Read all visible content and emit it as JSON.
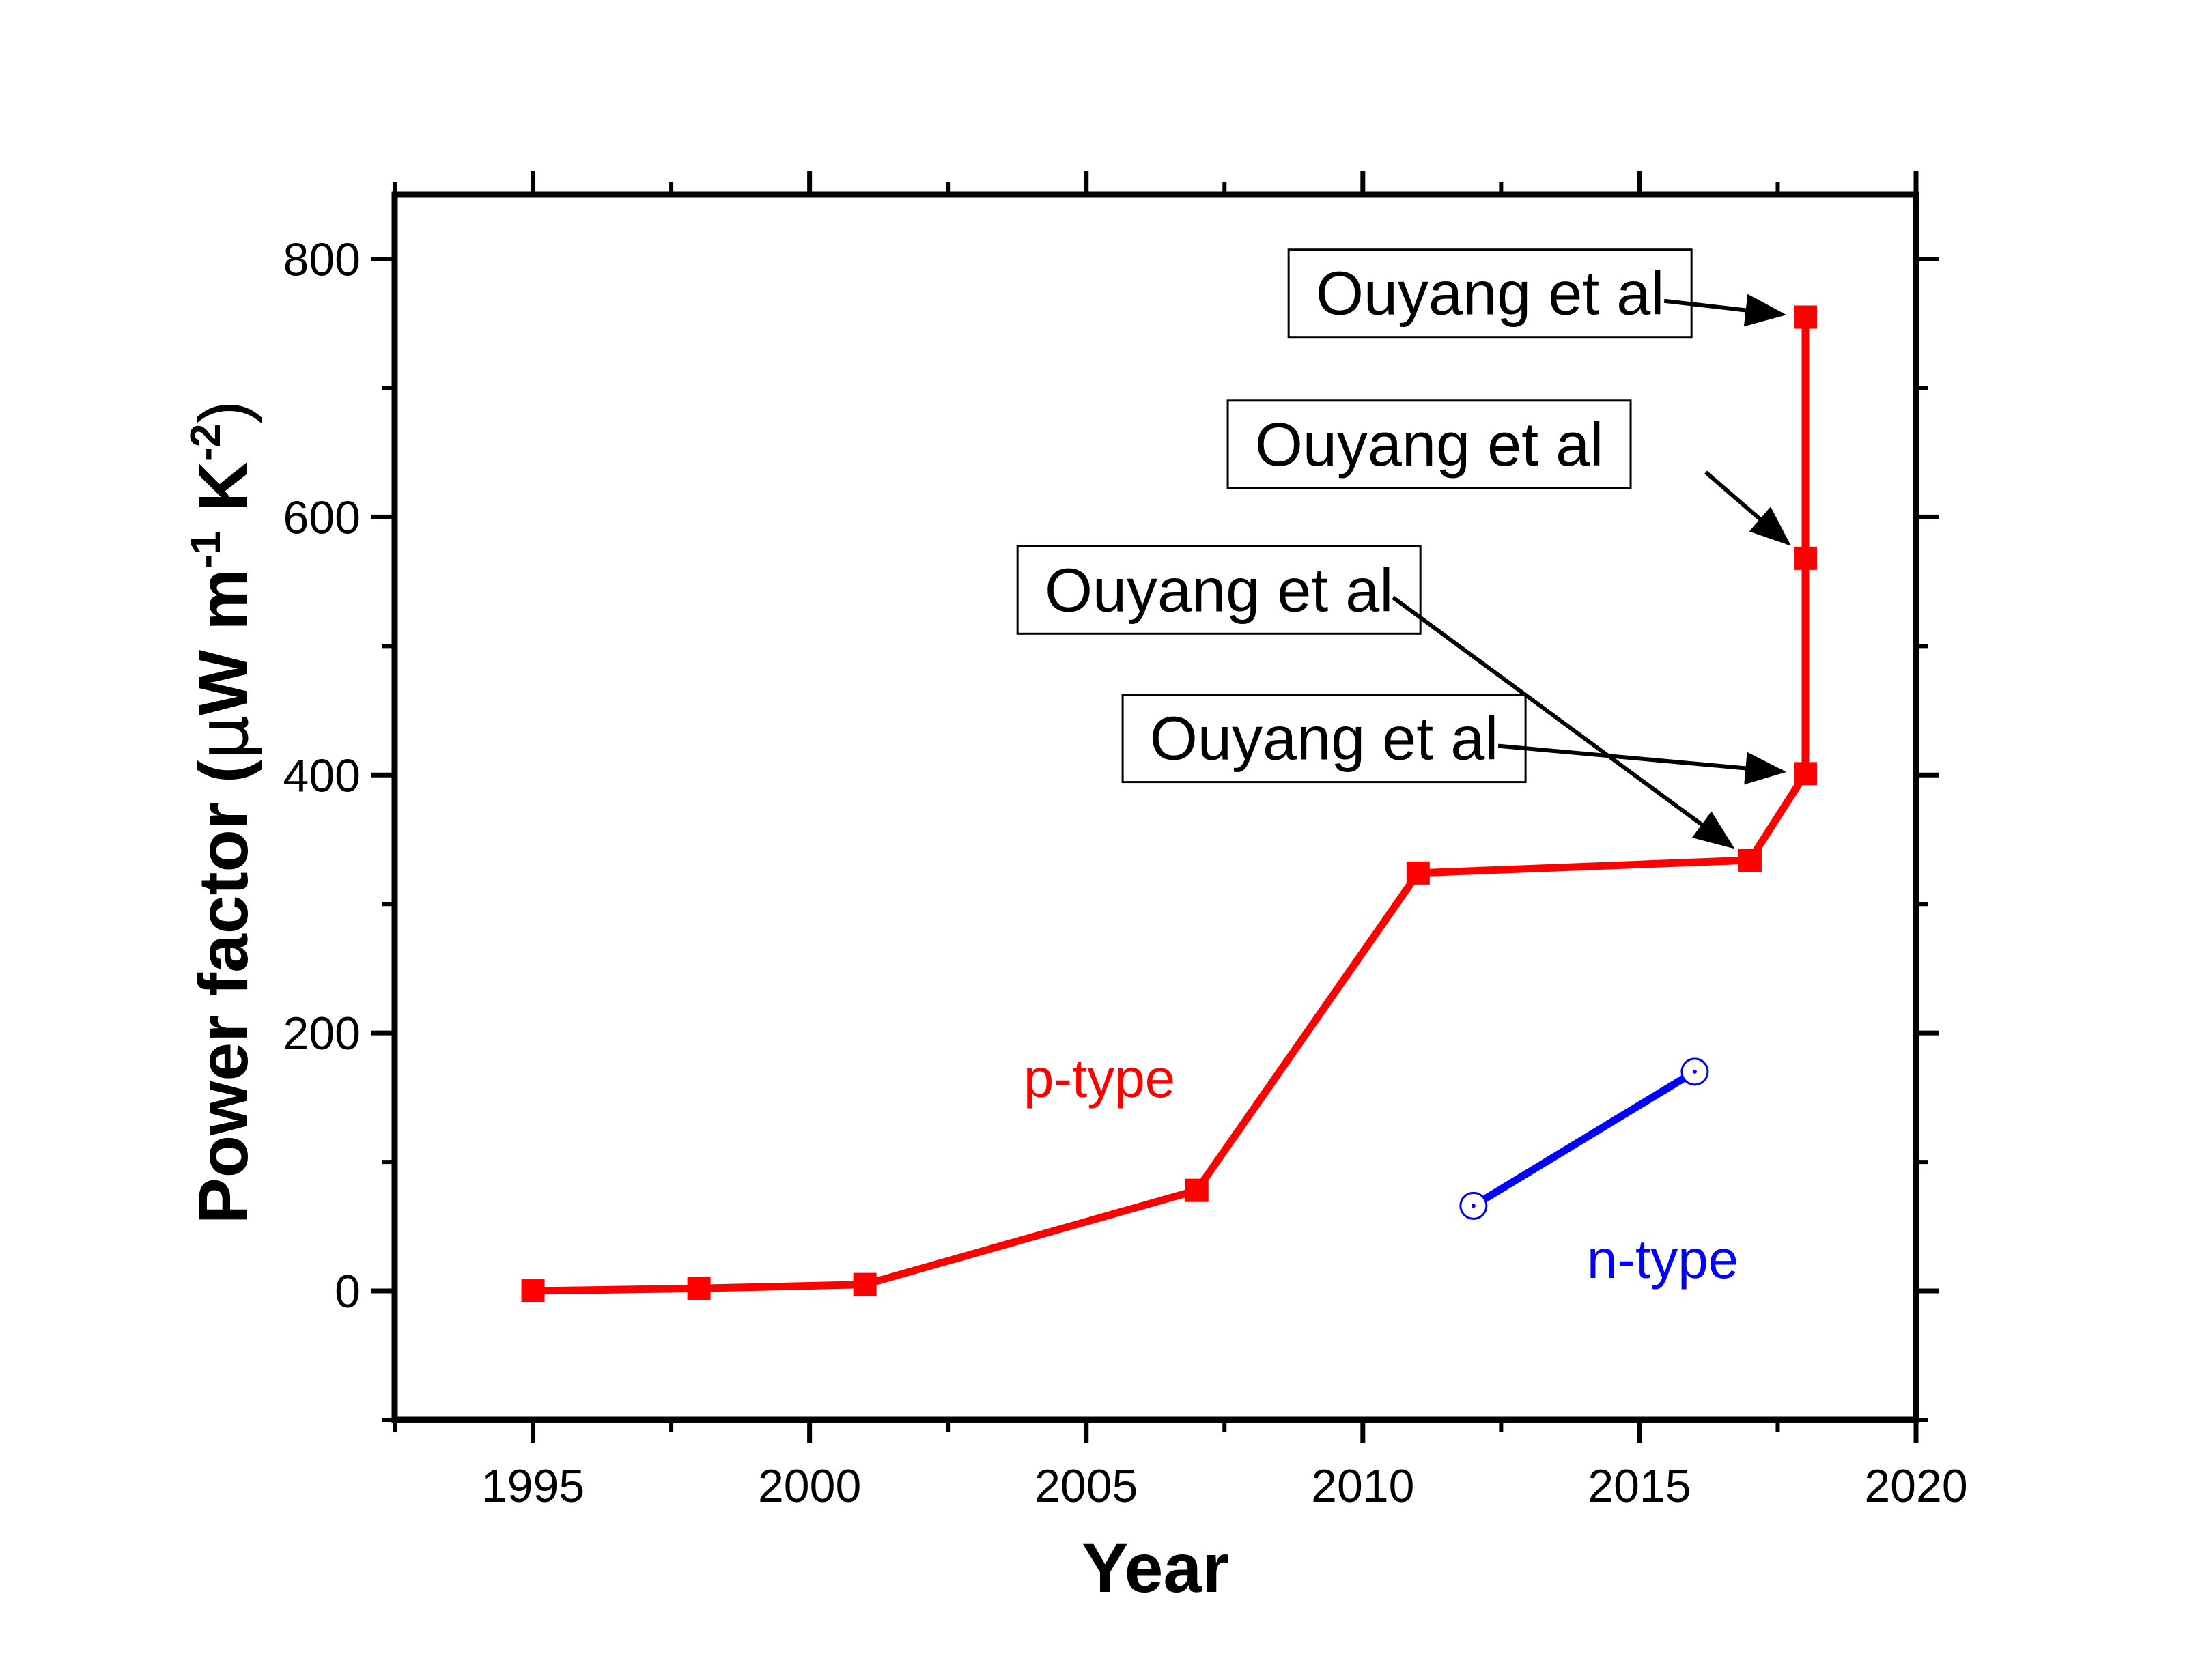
{
  "chart_data": {
    "type": "line",
    "xlabel": "Year",
    "ylabel": "Power factor (μW m⁻¹ K⁻²)",
    "ylabel_parts": {
      "main": "Power factor (",
      "mu": "μ",
      "w_m": "W m",
      "exp1": "-1",
      "k": " K",
      "exp2": "-2",
      "close": ")"
    },
    "xlim": [
      1992.5,
      2020
    ],
    "ylim": [
      -100,
      850
    ],
    "xticks": [
      1995,
      2000,
      2005,
      2010,
      2015,
      2020
    ],
    "yticks": [
      0,
      200,
      400,
      600,
      800
    ],
    "series": [
      {
        "name": "p-type",
        "color": "#ff0000",
        "marker": "square",
        "x": [
          1995,
          1998,
          2001,
          2007,
          2011,
          2017,
          2018,
          2018,
          2018
        ],
        "y": [
          0,
          2,
          5,
          78,
          324,
          334,
          401,
          568,
          755
        ]
      },
      {
        "name": "n-type",
        "color": "#0000ff",
        "marker": "open-circle",
        "x": [
          2012,
          2016
        ],
        "y": [
          66,
          170
        ]
      }
    ],
    "annotations": [
      {
        "text": "Ouyang et al",
        "label_x": 2007.4,
        "label_y": 527,
        "target_x": 2017,
        "target_y": 334
      },
      {
        "text": "Ouyang et al",
        "label_x": 2009.3,
        "label_y": 412,
        "target_x": 2018,
        "target_y": 401
      },
      {
        "text": "Ouyang et al",
        "label_x": 2011.2,
        "label_y": 640,
        "target_x": 2018,
        "target_y": 568
      },
      {
        "text": "Ouyang et al",
        "label_x": 2012.3,
        "label_y": 757,
        "target_x": 2018,
        "target_y": 755
      }
    ]
  }
}
